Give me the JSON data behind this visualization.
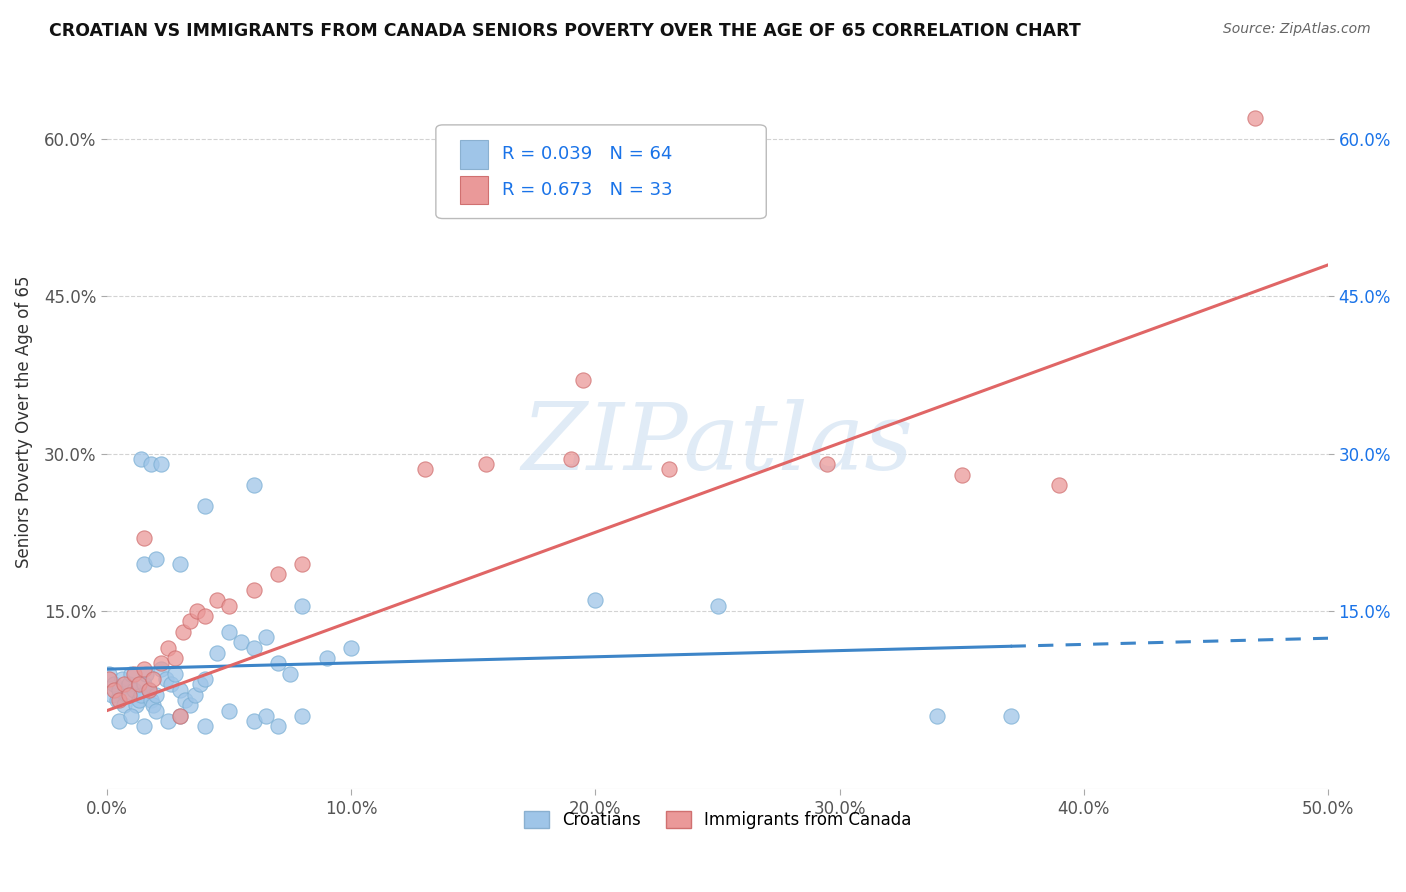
{
  "title": "CROATIAN VS IMMIGRANTS FROM CANADA SENIORS POVERTY OVER THE AGE OF 65 CORRELATION CHART",
  "source": "Source: ZipAtlas.com",
  "ylabel": "Seniors Poverty Over the Age of 65",
  "xlim": [
    0.0,
    0.5
  ],
  "ylim": [
    -0.02,
    0.68
  ],
  "xtick_labels": [
    "0.0%",
    "10.0%",
    "20.0%",
    "30.0%",
    "40.0%",
    "50.0%"
  ],
  "xtick_vals": [
    0.0,
    0.1,
    0.2,
    0.3,
    0.4,
    0.5
  ],
  "ytick_labels": [
    "15.0%",
    "30.0%",
    "45.0%",
    "60.0%"
  ],
  "ytick_vals": [
    0.15,
    0.3,
    0.45,
    0.6
  ],
  "blue_color": "#9fc5e8",
  "pink_color": "#ea9999",
  "blue_line_color": "#3d85c8",
  "pink_line_color": "#e06666",
  "legend_text_color": "#1a73e8",
  "legend_label_color": "#222222",
  "watermark": "ZIPatlas",
  "background_color": "#ffffff",
  "right_tick_color": "#1a73e8",
  "croatian_x": [
    0.001,
    0.002,
    0.003,
    0.004,
    0.005,
    0.006,
    0.007,
    0.008,
    0.009,
    0.01,
    0.011,
    0.012,
    0.013,
    0.014,
    0.015,
    0.016,
    0.017,
    0.018,
    0.019,
    0.02,
    0.022,
    0.024,
    0.026,
    0.028,
    0.03,
    0.032,
    0.034,
    0.036,
    0.038,
    0.04,
    0.045,
    0.05,
    0.055,
    0.06,
    0.065,
    0.07,
    0.075,
    0.08,
    0.09,
    0.1,
    0.005,
    0.01,
    0.015,
    0.02,
    0.025,
    0.03,
    0.04,
    0.05,
    0.06,
    0.065,
    0.07,
    0.08,
    0.015,
    0.02,
    0.03,
    0.04,
    0.2,
    0.25,
    0.34,
    0.37,
    0.014,
    0.018,
    0.022,
    0.06
  ],
  "croatian_y": [
    0.09,
    0.07,
    0.08,
    0.065,
    0.075,
    0.085,
    0.06,
    0.07,
    0.08,
    0.09,
    0.075,
    0.06,
    0.065,
    0.07,
    0.08,
    0.09,
    0.075,
    0.065,
    0.06,
    0.07,
    0.095,
    0.085,
    0.08,
    0.09,
    0.075,
    0.065,
    0.06,
    0.07,
    0.08,
    0.085,
    0.11,
    0.13,
    0.12,
    0.115,
    0.125,
    0.1,
    0.09,
    0.155,
    0.105,
    0.115,
    0.045,
    0.05,
    0.04,
    0.055,
    0.045,
    0.05,
    0.04,
    0.055,
    0.045,
    0.05,
    0.04,
    0.05,
    0.195,
    0.2,
    0.195,
    0.25,
    0.16,
    0.155,
    0.05,
    0.05,
    0.295,
    0.29,
    0.29,
    0.27
  ],
  "canada_x": [
    0.001,
    0.003,
    0.005,
    0.007,
    0.009,
    0.011,
    0.013,
    0.015,
    0.017,
    0.019,
    0.022,
    0.025,
    0.028,
    0.031,
    0.034,
    0.037,
    0.04,
    0.045,
    0.05,
    0.06,
    0.07,
    0.08,
    0.13,
    0.155,
    0.19,
    0.23,
    0.295,
    0.35,
    0.39,
    0.47,
    0.015,
    0.03,
    0.195
  ],
  "canada_y": [
    0.085,
    0.075,
    0.065,
    0.08,
    0.07,
    0.09,
    0.08,
    0.095,
    0.075,
    0.085,
    0.1,
    0.115,
    0.105,
    0.13,
    0.14,
    0.15,
    0.145,
    0.16,
    0.155,
    0.17,
    0.185,
    0.195,
    0.285,
    0.29,
    0.295,
    0.285,
    0.29,
    0.28,
    0.27,
    0.62,
    0.22,
    0.05,
    0.37
  ],
  "cro_line_x": [
    0.0,
    0.5
  ],
  "cro_line_y": [
    0.0945,
    0.124
  ],
  "can_line_x": [
    0.0,
    0.5
  ],
  "can_line_y": [
    0.055,
    0.48
  ]
}
